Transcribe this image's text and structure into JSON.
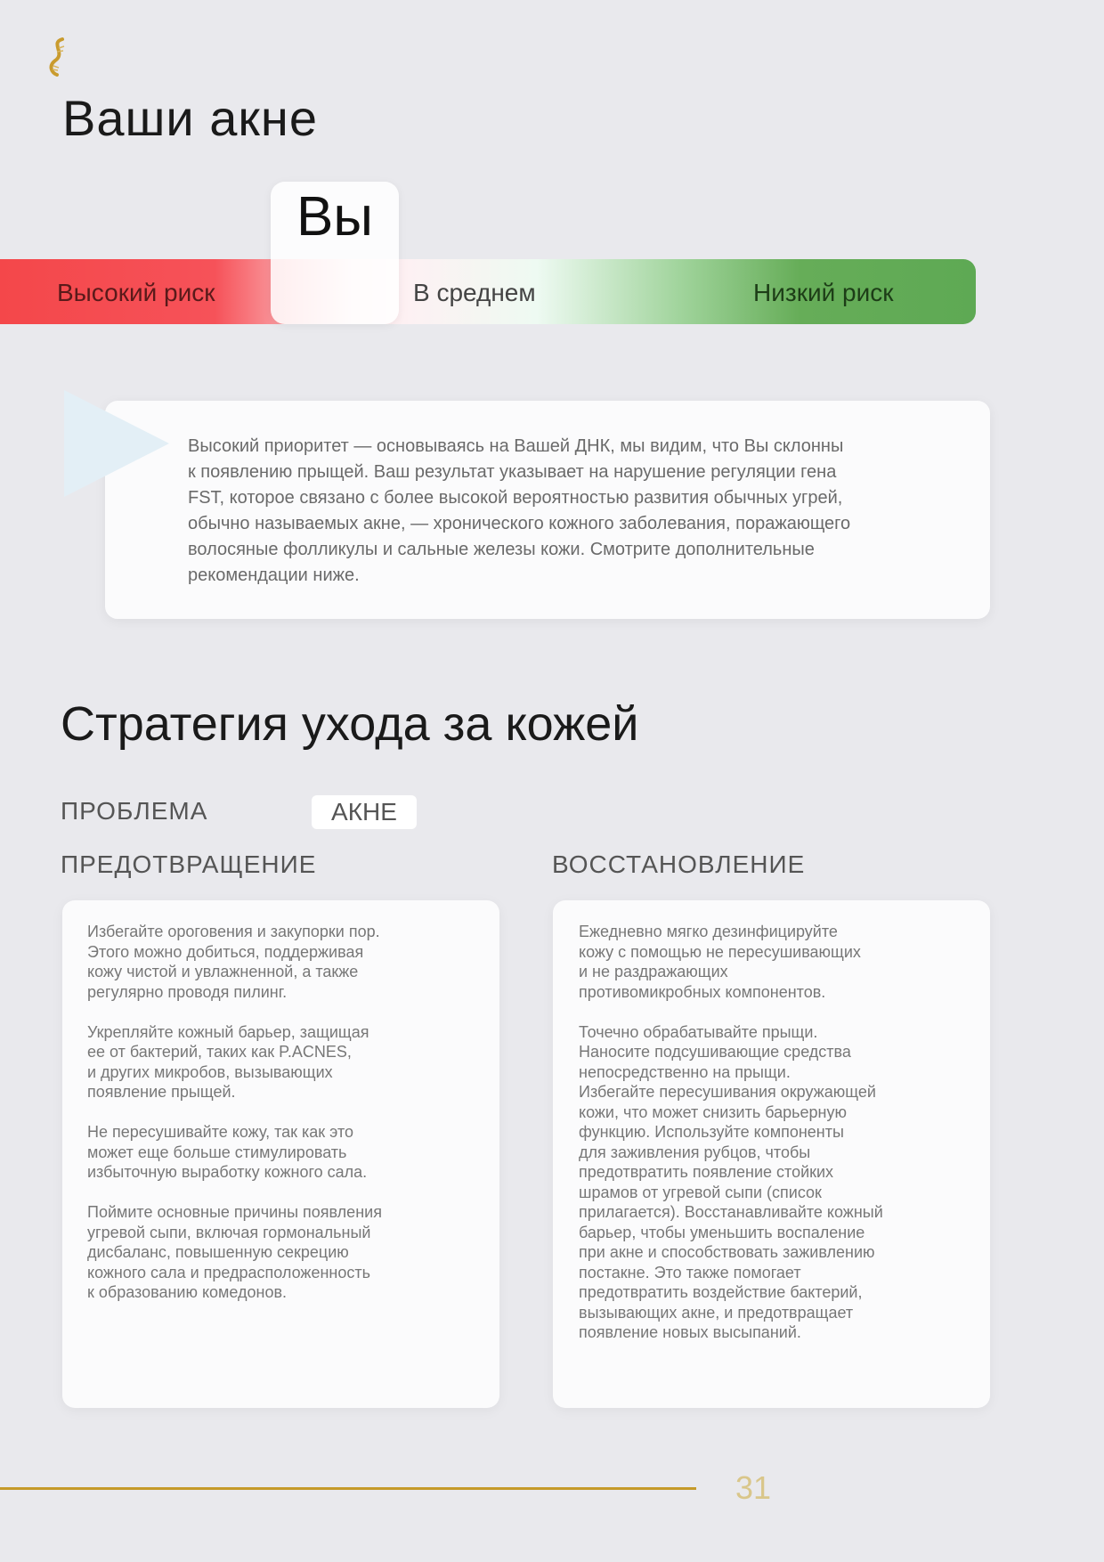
{
  "header": {
    "logo_icon": "dna-helix-icon",
    "title": "Ваши акне"
  },
  "risk_scale": {
    "marker_label": "Вы",
    "marker_position": "high-risk",
    "labels": [
      "Высокий риск",
      "В среднем",
      "Низкий риск"
    ],
    "colors": {
      "high": "#f4474a",
      "low": "#5ea954"
    }
  },
  "callout": {
    "text": "Высокий приоритет — основываясь на Вашей ДНК, мы видим, что Вы склонны\nк появлению прыщей. Ваш результат указывает на нарушение регуляции гена\nFST, которое связано с более высокой вероятностью развития обычных угрей,\nобычно называемых акне, — хронического кожного заболевания, поражающего\nволосяные фолликулы и сальные железы кожи. Смотрите дополнительные\nрекомендации ниже."
  },
  "strategy": {
    "title": "Стратегия ухода за кожей",
    "problem_label": "ПРОБЛЕМА",
    "problem_value": "АКНЕ",
    "prevention": {
      "title": "ПРЕДОТВРАЩЕНИЕ",
      "text": "Избегайте ороговения и закупорки пор.\nЭтого можно добиться, поддерживая\nкожу чистой и увлажненной, а также\nрегулярно проводя пилинг.\n\nУкрепляйте кожный барьер, защищая\nее от бактерий, таких как P.ACNES,\nи других микробов, вызывающих\nпоявление прыщей.\n\nНе пересушивайте кожу, так как это\nможет еще больше стимулировать\nизбыточную выработку кожного сала.\n\nПоймите основные причины появления\nугревой сыпи, включая гормональный\nдисбаланс, повышенную секрецию\nкожного сала и предрасположенность\nк образованию комедонов."
    },
    "restoration": {
      "title": "ВОССТАНОВЛЕНИЕ",
      "text": "Ежедневно мягко дезинфицируйте\nкожу с помощью не пересушивающих\nи не раздражающих\nпротивомикробных компонентов.\n\nТочечно обрабатывайте прыщи.\nНаносите подсушивающие средства\nнепосредственно на прыщи.\nИзбегайте пересушивания окружающей\nкожи, что может снизить барьерную\nфункцию. Используйте компоненты\nдля заживления рубцов, чтобы\nпредотвратить появление стойких\nшрамов от угревой сыпи (список\nприлагается). Восстанавливайте кожный\nбарьер, чтобы уменьшить воспаление\nпри акне и способствовать заживлению\nпостакне. Это также помогает\nпредотвратить воздействие бактерий,\nвызывающих акне, и предотвращает\nпоявление новых высыпаний."
    }
  },
  "footer": {
    "page_number": "31",
    "accent_color": "#c59a2a"
  }
}
